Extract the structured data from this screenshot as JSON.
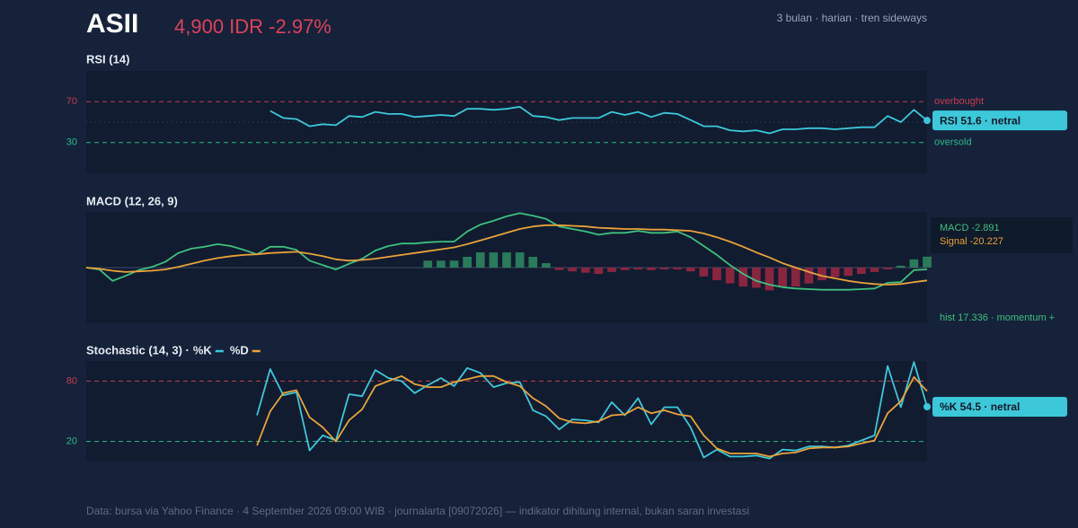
{
  "header": {
    "title": "ASII",
    "price": "4,900 IDR -2.97%",
    "subtitle": "3 bulan · harian · tren sideways"
  },
  "footer": "Data: bursa via Yahoo Finance · 4 September 2026 09:00 WIB · journalarta [09072026] — indikator dihitung internal, bukan saran investasi",
  "chart_data": [
    {
      "type": "line",
      "title": "RSI (14)",
      "ylim": [
        0,
        100
      ],
      "yticks": [
        30,
        70
      ],
      "midline": 50,
      "levels": [
        {
          "value": 70,
          "label": "overbought",
          "color": "#c8394f"
        },
        {
          "value": 30,
          "label": "oversold",
          "color": "#2fb88a"
        }
      ],
      "badge": "RSI 51.6 · netral",
      "badge_color": "#3cc8d8",
      "series": [
        {
          "name": "RSI",
          "color": "#3cc8d8",
          "values": [
            null,
            null,
            null,
            null,
            null,
            null,
            null,
            null,
            null,
            null,
            null,
            null,
            null,
            null,
            61,
            54,
            53,
            46,
            48,
            47,
            56,
            55,
            60,
            58,
            58,
            55,
            56,
            57,
            56,
            63,
            63,
            62,
            63,
            65,
            56,
            55,
            52,
            54,
            54,
            54,
            60,
            57,
            60,
            55,
            59,
            58,
            52,
            46,
            46,
            42,
            41,
            42,
            39,
            43,
            43,
            44,
            44,
            43,
            44,
            45,
            45,
            56,
            50,
            62,
            51.6
          ]
        }
      ]
    },
    {
      "type": "macd",
      "title": "MACD (12, 26, 9)",
      "ylim": [
        -88,
        88
      ],
      "info": [
        "MACD -2.891",
        "Signal -20.227"
      ],
      "note": "hist 17.336 · momentum +",
      "note_color": "#3fbf7f",
      "series": [
        {
          "name": "MACD",
          "color": "#3fbf7f",
          "values": [
            0,
            -3,
            -21,
            -13,
            -4,
            1,
            9,
            23,
            30,
            33,
            37,
            34,
            28,
            21,
            33,
            33,
            28,
            11,
            4,
            -3,
            6,
            14,
            27,
            34,
            38,
            38,
            40,
            41,
            41,
            57,
            68,
            74,
            81,
            86,
            82,
            77,
            65,
            61,
            57,
            52,
            55,
            55,
            58,
            55,
            55,
            57,
            48,
            34,
            20,
            4,
            -10,
            -21,
            -27,
            -31,
            -33,
            -34,
            -35,
            -35,
            -35,
            -34,
            -33,
            -24,
            -23,
            -4,
            -2.891
          ]
        },
        {
          "name": "Signal",
          "color": "#e8a23a",
          "values": [
            0,
            -2,
            -5,
            -7,
            -6,
            -5,
            -3,
            1,
            6,
            11,
            15,
            18,
            20,
            21,
            23,
            24,
            25,
            22,
            18,
            13,
            11,
            12,
            14,
            17,
            20,
            23,
            26,
            29,
            32,
            37,
            43,
            49,
            55,
            61,
            65,
            67,
            67,
            66,
            65,
            63,
            62,
            61,
            61,
            60,
            60,
            59,
            58,
            54,
            48,
            41,
            33,
            24,
            16,
            7,
            0,
            -7,
            -13,
            -17,
            -21,
            -24,
            -26,
            -27,
            -26,
            -23,
            -20.227
          ]
        }
      ],
      "histogram": {
        "positive_color": "#2a7a5c",
        "negative_color": "#8a2540",
        "values": [
          null,
          null,
          null,
          null,
          null,
          null,
          null,
          null,
          null,
          null,
          null,
          null,
          null,
          null,
          null,
          null,
          null,
          null,
          null,
          null,
          null,
          null,
          null,
          null,
          null,
          null,
          11,
          11,
          11,
          17,
          24,
          24,
          24,
          24,
          17,
          7,
          -4,
          -6,
          -8,
          -10,
          -7,
          -4,
          -3,
          -4,
          -3,
          -3,
          -6,
          -14,
          -20,
          -25,
          -30,
          -32,
          -36,
          -30,
          -30,
          -25,
          -20,
          -15,
          -13,
          -10,
          -7,
          -3,
          3,
          13,
          17.336
        ]
      }
    },
    {
      "type": "line",
      "title": "Stochastic (14, 3) ·",
      "ylim": [
        0,
        100
      ],
      "yticks": [
        20,
        80
      ],
      "levels": [
        {
          "value": 80,
          "color": "#c8394f"
        },
        {
          "value": 20,
          "color": "#2fb88a"
        }
      ],
      "badge": "%K 54.5 · netral",
      "badge_color": "#3cc8d8",
      "series": [
        {
          "name": "%K",
          "color": "#3cc8d8",
          "values": [
            null,
            null,
            null,
            null,
            null,
            null,
            null,
            null,
            null,
            null,
            null,
            null,
            null,
            46,
            92,
            66,
            69,
            11,
            26,
            21,
            67,
            65,
            91,
            83,
            80,
            68,
            76,
            83,
            75,
            93,
            88,
            74,
            78,
            79,
            51,
            45,
            32,
            42,
            41,
            39,
            59,
            46,
            63,
            37,
            54,
            54,
            34,
            4,
            12,
            5,
            5,
            6,
            3,
            12,
            11,
            15,
            15,
            14,
            16,
            21,
            26,
            95,
            54,
            99,
            54.5
          ]
        },
        {
          "name": "%D",
          "color": "#e8a23a",
          "values": [
            null,
            null,
            null,
            null,
            null,
            null,
            null,
            null,
            null,
            null,
            null,
            null,
            null,
            16,
            50,
            68,
            71,
            44,
            34,
            20,
            41,
            52,
            75,
            80,
            85,
            77,
            74,
            74,
            79,
            82,
            85,
            85,
            79,
            75,
            63,
            55,
            43,
            39,
            38,
            40,
            46,
            47,
            54,
            48,
            51,
            47,
            45,
            26,
            13,
            8,
            8,
            8,
            5,
            8,
            9,
            13,
            14,
            14,
            15,
            18,
            21,
            48,
            60,
            84,
            70
          ]
        }
      ]
    }
  ]
}
